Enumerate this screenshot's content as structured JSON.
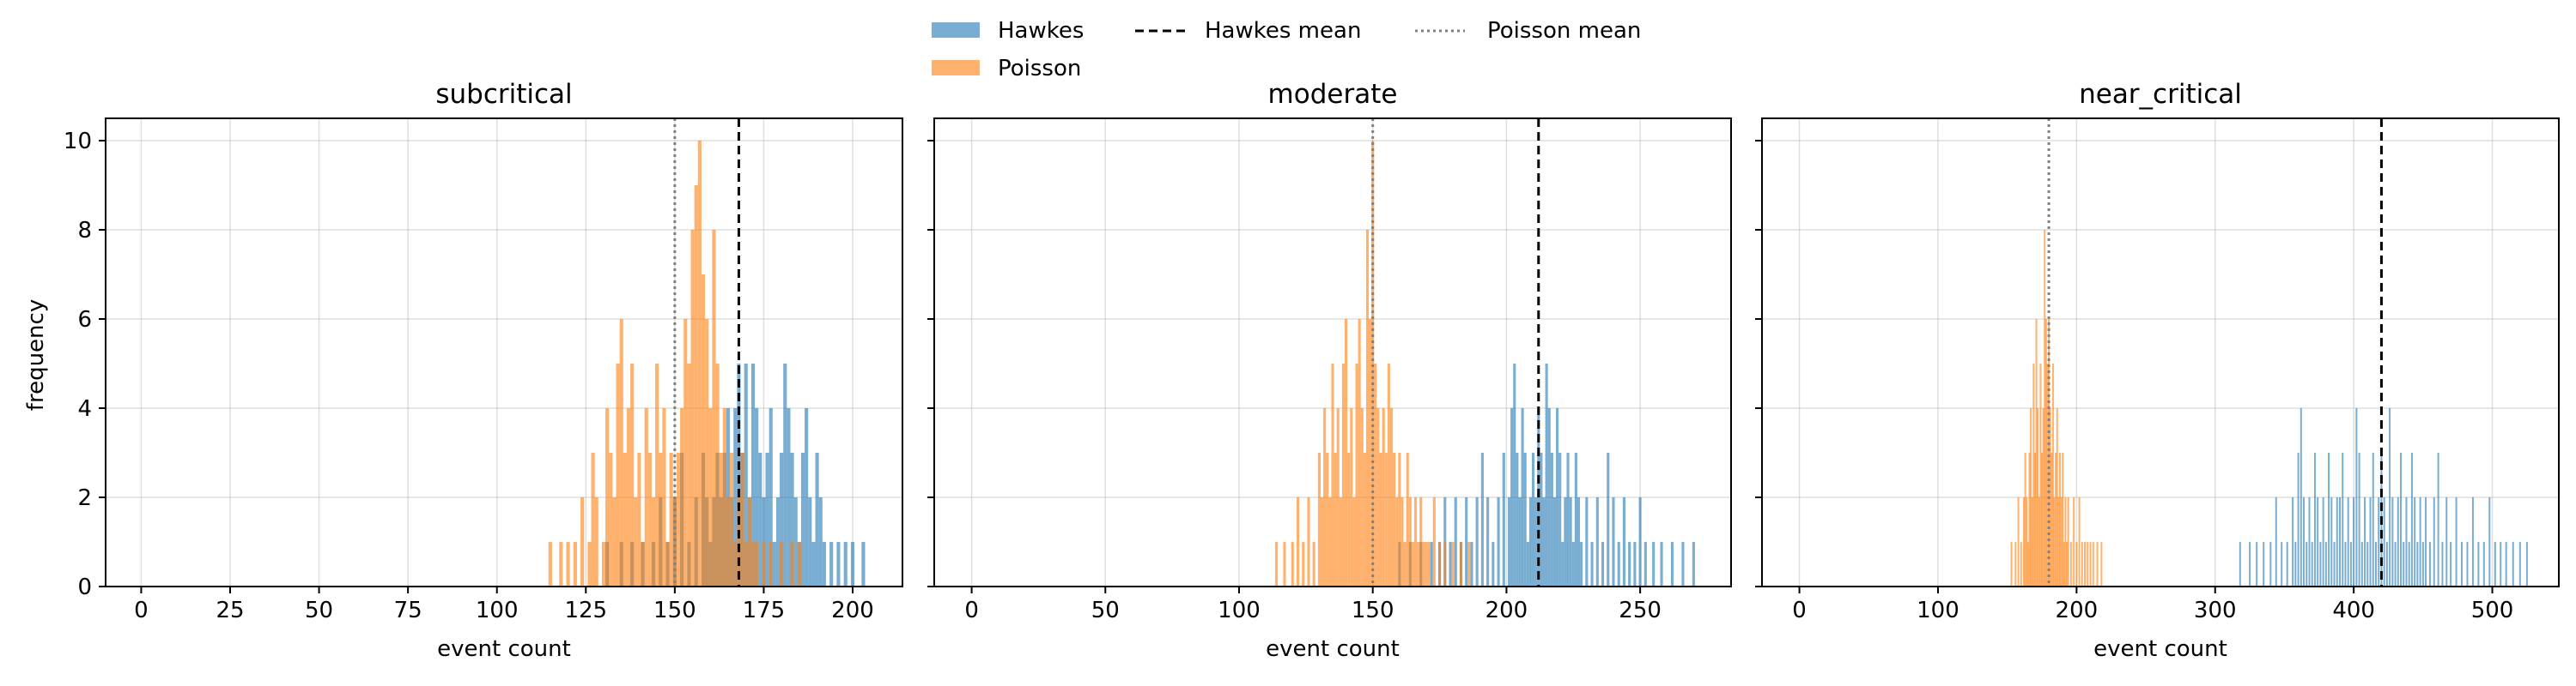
{
  "legend": {
    "placement": "top-center",
    "entries": [
      {
        "label": "Hawkes",
        "kind": "patch",
        "color": "#1f77b4"
      },
      {
        "label": "Poisson",
        "kind": "patch",
        "color": "#ff7f0e"
      },
      {
        "label": "Hawkes mean",
        "kind": "dashed-line",
        "color": "#000000"
      },
      {
        "label": "Poisson mean",
        "kind": "dotted-line",
        "color": "#808080"
      }
    ]
  },
  "chart_data": [
    {
      "type": "histogram",
      "title": "subcritical",
      "xlabel": "event count",
      "ylabel": "frequency",
      "xlim": [
        -10,
        214
      ],
      "ylim": [
        0,
        10.5
      ],
      "xticks": [
        0,
        25,
        50,
        75,
        100,
        125,
        150,
        175,
        200
      ],
      "yticks": [
        0,
        2,
        4,
        6,
        8,
        10
      ],
      "grid": true,
      "hawkes_mean": 168,
      "poisson_mean": 150,
      "series": [
        {
          "name": "Hawkes",
          "color": "#1f77b4",
          "x": [
            131,
            135,
            138,
            141,
            144,
            146,
            148,
            150,
            152,
            154,
            156,
            158,
            159,
            160,
            161,
            162,
            163,
            164,
            165,
            166,
            167,
            168,
            169,
            170,
            171,
            172,
            173,
            174,
            175,
            176,
            177,
            178,
            179,
            180,
            181,
            182,
            183,
            184,
            185,
            186,
            187,
            188,
            189,
            190,
            191,
            192,
            194,
            196,
            198,
            200,
            203
          ],
          "y": [
            1,
            1,
            1,
            1,
            1,
            2,
            1,
            2,
            3,
            1,
            2,
            3,
            2,
            1,
            2,
            3,
            2,
            3,
            4,
            2,
            4,
            5,
            3,
            5,
            2,
            5,
            4,
            3,
            2,
            3,
            4,
            1,
            2,
            3,
            5,
            4,
            3,
            2,
            1,
            3,
            4,
            2,
            1,
            3,
            2,
            1,
            1,
            1,
            1,
            1,
            1
          ]
        },
        {
          "name": "Poisson",
          "color": "#ff7f0e",
          "x": [
            115,
            118,
            120,
            122,
            124,
            126,
            127,
            128,
            130,
            131,
            132,
            133,
            134,
            135,
            136,
            137,
            138,
            139,
            140,
            141,
            142,
            143,
            144,
            145,
            146,
            147,
            148,
            149,
            150,
            151,
            152,
            153,
            154,
            155,
            156,
            157,
            158,
            159,
            160,
            161,
            162,
            163,
            164,
            165,
            166,
            167,
            168,
            169,
            170,
            171,
            172,
            173,
            175,
            177,
            180,
            183,
            185
          ],
          "y": [
            1,
            1,
            1,
            1,
            2,
            1,
            3,
            2,
            1,
            4,
            3,
            2,
            5,
            6,
            3,
            4,
            5,
            2,
            3,
            1,
            4,
            3,
            2,
            5,
            3,
            4,
            1,
            3,
            2,
            3,
            4,
            6,
            5,
            8,
            9,
            10,
            7,
            6,
            4,
            8,
            5,
            3,
            4,
            2,
            3,
            1,
            2,
            3,
            1,
            2,
            1,
            1,
            1,
            1,
            1,
            1,
            1
          ]
        }
      ]
    },
    {
      "type": "histogram",
      "title": "moderate",
      "xlabel": "event count",
      "ylabel": "",
      "xlim": [
        -14,
        284
      ],
      "ylim": [
        0,
        10.5
      ],
      "xticks": [
        0,
        50,
        100,
        150,
        200,
        250
      ],
      "yticks": [
        0,
        2,
        4,
        6,
        8,
        10
      ],
      "grid": true,
      "hawkes_mean": 212,
      "poisson_mean": 150,
      "series": [
        {
          "name": "Hawkes",
          "color": "#1f77b4",
          "x": [
            160,
            164,
            168,
            172,
            175,
            177,
            179,
            181,
            183,
            185,
            187,
            189,
            191,
            193,
            195,
            197,
            199,
            201,
            202,
            203,
            204,
            205,
            206,
            207,
            208,
            209,
            210,
            211,
            212,
            213,
            214,
            215,
            216,
            217,
            218,
            219,
            220,
            221,
            222,
            223,
            224,
            225,
            226,
            227,
            228,
            230,
            232,
            234,
            236,
            238,
            240,
            242,
            244,
            246,
            248,
            250,
            252,
            255,
            258,
            262,
            266,
            270
          ],
          "y": [
            1,
            1,
            1,
            1,
            1,
            2,
            1,
            2,
            1,
            2,
            1,
            2,
            3,
            2,
            1,
            2,
            3,
            2,
            4,
            5,
            3,
            2,
            4,
            3,
            1,
            2,
            3,
            2,
            4,
            3,
            2,
            5,
            4,
            3,
            2,
            4,
            3,
            1,
            2,
            3,
            2,
            1,
            3,
            2,
            1,
            2,
            1,
            2,
            1,
            3,
            2,
            1,
            2,
            1,
            1,
            2,
            1,
            1,
            1,
            1,
            1,
            1
          ]
        },
        {
          "name": "Poisson",
          "color": "#ff7f0e",
          "x": [
            114,
            117,
            120,
            122,
            124,
            126,
            128,
            130,
            131,
            132,
            133,
            134,
            135,
            136,
            137,
            138,
            139,
            140,
            141,
            142,
            143,
            144,
            145,
            146,
            147,
            148,
            149,
            150,
            151,
            152,
            153,
            154,
            155,
            156,
            157,
            158,
            159,
            160,
            161,
            162,
            163,
            164,
            165,
            166,
            167,
            168,
            169,
            170,
            171,
            173,
            175,
            177,
            180,
            183,
            186
          ],
          "y": [
            1,
            1,
            1,
            2,
            1,
            2,
            1,
            3,
            2,
            4,
            3,
            2,
            5,
            3,
            4,
            2,
            5,
            6,
            3,
            4,
            2,
            5,
            6,
            4,
            3,
            8,
            6,
            10,
            5,
            4,
            3,
            4,
            3,
            5,
            4,
            3,
            2,
            3,
            2,
            1,
            3,
            2,
            1,
            2,
            1,
            2,
            1,
            1,
            1,
            2,
            1,
            1,
            1,
            1,
            1
          ]
        }
      ]
    },
    {
      "type": "histogram",
      "title": "near_critical",
      "xlabel": "event count",
      "ylabel": "",
      "xlim": [
        -27,
        548
      ],
      "ylim": [
        0,
        10.5
      ],
      "xticks": [
        0,
        100,
        200,
        300,
        400,
        500
      ],
      "yticks": [
        0,
        2,
        4,
        6,
        8,
        10
      ],
      "grid": true,
      "hawkes_mean": 420,
      "poisson_mean": 180,
      "series": [
        {
          "name": "Hawkes",
          "color": "#1f77b4",
          "x": [
            318,
            325,
            330,
            335,
            340,
            344,
            348,
            352,
            356,
            358,
            360,
            362,
            364,
            366,
            368,
            370,
            372,
            374,
            376,
            378,
            380,
            382,
            384,
            386,
            388,
            390,
            392,
            394,
            396,
            398,
            400,
            402,
            404,
            406,
            408,
            410,
            412,
            414,
            416,
            418,
            420,
            422,
            424,
            426,
            428,
            430,
            432,
            434,
            436,
            438,
            440,
            442,
            444,
            446,
            448,
            450,
            452,
            455,
            458,
            461,
            464,
            467,
            470,
            474,
            478,
            482,
            486,
            490,
            494,
            498,
            502,
            506,
            510,
            515,
            520,
            525
          ],
          "y": [
            1,
            1,
            1,
            1,
            1,
            2,
            1,
            1,
            2,
            1,
            3,
            4,
            2,
            1,
            2,
            1,
            3,
            2,
            1,
            2,
            1,
            3,
            2,
            1,
            2,
            2,
            3,
            1,
            2,
            1,
            2,
            4,
            3,
            1,
            2,
            1,
            2,
            3,
            1,
            2,
            3,
            2,
            1,
            4,
            2,
            1,
            2,
            3,
            1,
            2,
            1,
            3,
            2,
            1,
            2,
            1,
            2,
            1,
            2,
            3,
            1,
            2,
            1,
            2,
            1,
            1,
            2,
            1,
            1,
            2,
            1,
            1,
            1,
            1,
            1,
            1
          ]
        },
        {
          "name": "Poisson",
          "color": "#ff7f0e",
          "x": [
            153,
            156,
            158,
            160,
            162,
            163,
            164,
            165,
            166,
            167,
            168,
            169,
            170,
            171,
            172,
            173,
            174,
            175,
            176,
            177,
            178,
            179,
            180,
            181,
            182,
            183,
            184,
            185,
            186,
            187,
            188,
            189,
            190,
            191,
            192,
            193,
            194,
            196,
            198,
            200,
            202,
            204,
            206,
            208,
            210,
            212,
            215,
            218
          ],
          "y": [
            1,
            1,
            2,
            1,
            2,
            3,
            2,
            1,
            3,
            4,
            2,
            5,
            3,
            6,
            4,
            2,
            5,
            3,
            4,
            8,
            6,
            5,
            6,
            4,
            3,
            5,
            2,
            3,
            4,
            2,
            3,
            2,
            3,
            1,
            2,
            1,
            2,
            1,
            2,
            1,
            2,
            1,
            1,
            1,
            1,
            1,
            1,
            1
          ]
        }
      ]
    }
  ]
}
